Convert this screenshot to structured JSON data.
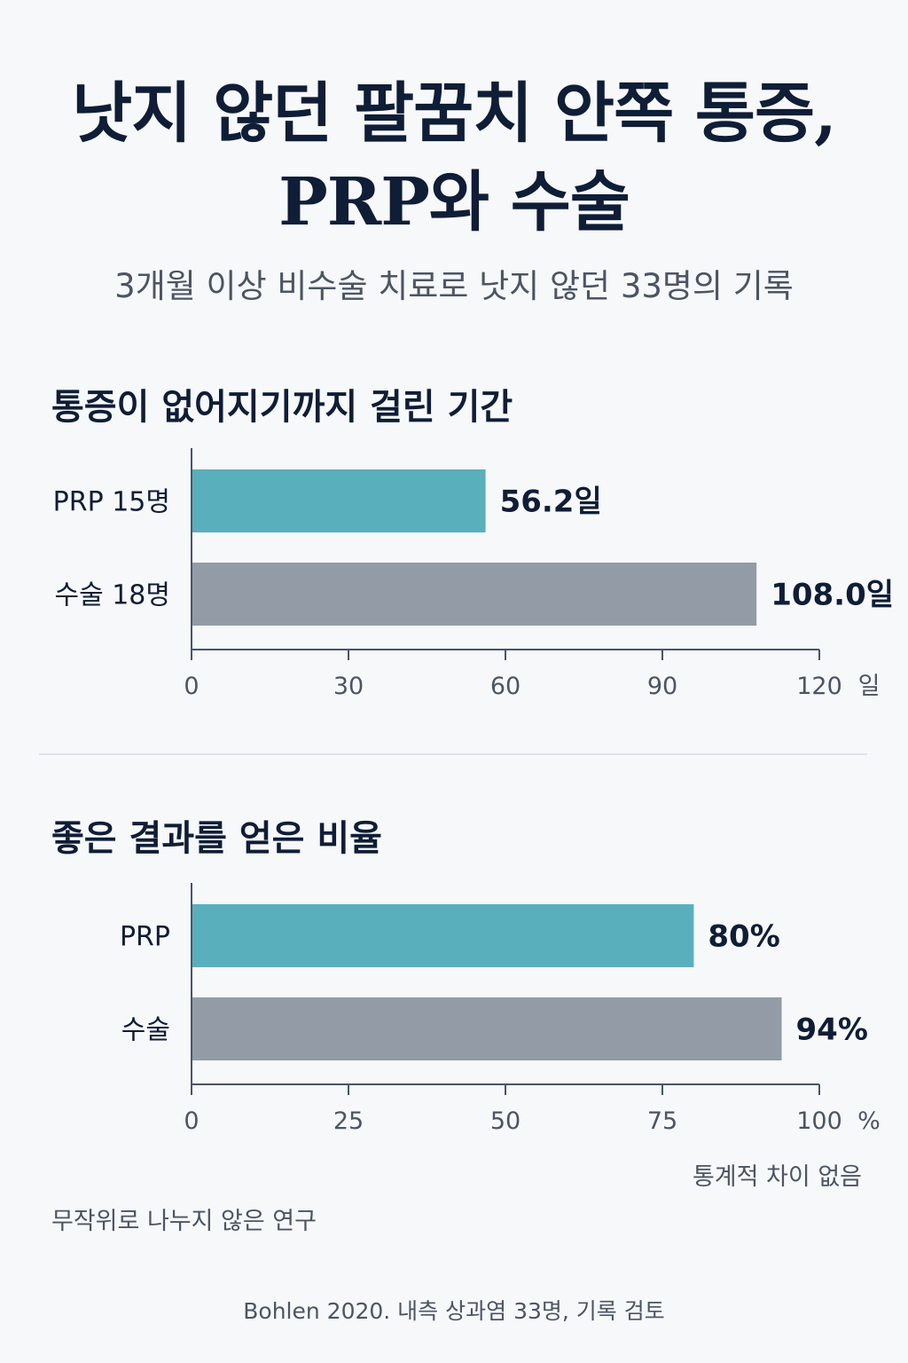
{
  "title": {
    "line1": "낫지 않던 팔꿈치 안쪽 통증,",
    "line2": "PRP와 수술"
  },
  "subtitle": "3개월 이상 비수술 치료로 낫지 않던 33명의 기록",
  "chart_data": [
    {
      "type": "bar",
      "orientation": "horizontal",
      "title": "통증이 없어지기까지 걸린 기간",
      "categories": [
        "PRP 15명",
        "수술 18명"
      ],
      "values": [
        56.2,
        108.0
      ],
      "value_labels": [
        "56.2일",
        "108.0일"
      ],
      "colors": [
        "#5aafbd",
        "#939ba7"
      ],
      "xlim": [
        0,
        120
      ],
      "xticks": [
        0,
        30,
        60,
        90,
        120
      ],
      "xticklabels": [
        "0",
        "30",
        "60",
        "90",
        "120"
      ],
      "xunit": "일",
      "grid": false
    },
    {
      "type": "bar",
      "orientation": "horizontal",
      "title": "좋은 결과를 얻은 비율",
      "categories": [
        "PRP",
        "수술"
      ],
      "values": [
        80,
        94
      ],
      "value_labels": [
        "80%",
        "94%"
      ],
      "colors": [
        "#5aafbd",
        "#939ba7"
      ],
      "xlim": [
        0,
        100
      ],
      "xticks": [
        0,
        25,
        50,
        75,
        100
      ],
      "xticklabels": [
        "0",
        "25",
        "50",
        "75",
        "100"
      ],
      "xunit": "%",
      "annotation": "통계적 차이 없음",
      "grid": false
    }
  ],
  "notes": {
    "study_type": "무작위로 나누지 않은 연구"
  },
  "source": "Bohlen 2020. 내측 상과염 33명, 기록 검토"
}
